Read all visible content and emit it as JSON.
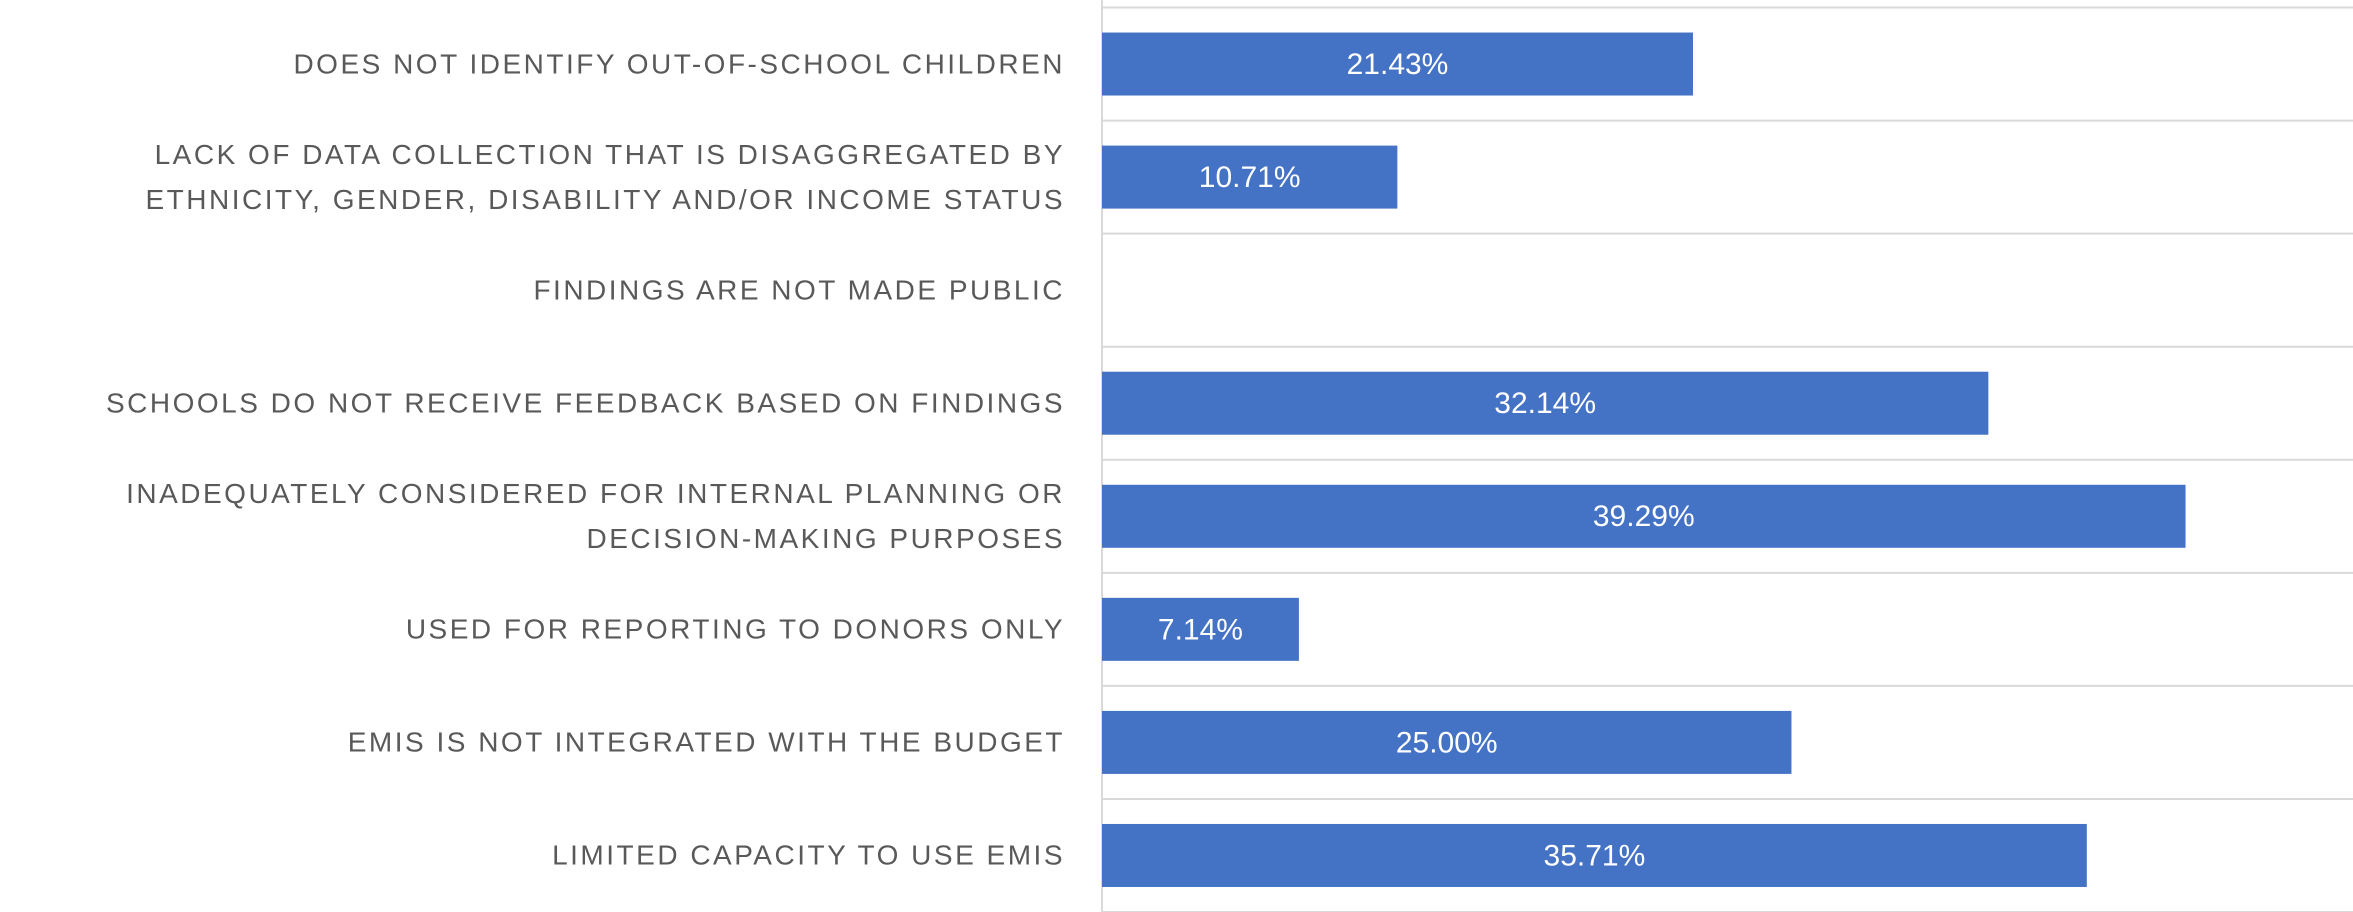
{
  "chart_data": {
    "type": "bar",
    "orientation": "horizontal",
    "categories": [
      "DOES NOT IDENTIFY OUT-OF-SCHOOL CHILDREN",
      "LACK OF DATA COLLECTION THAT IS DISAGGREGATED BY ETHNICITY, GENDER, DISABILITY AND/OR INCOME STATUS",
      "FINDINGS ARE NOT MADE PUBLIC",
      "SCHOOLS DO NOT RECEIVE FEEDBACK BASED ON FINDINGS",
      "INADEQUATELY CONSIDERED FOR INTERNAL PLANNING OR DECISION-MAKING PURPOSES",
      "USED FOR REPORTING TO DONORS ONLY",
      "EMIS IS NOT INTEGRATED WITH THE BUDGET",
      "LIMITED CAPACITY TO USE EMIS"
    ],
    "values": [
      21.43,
      10.71,
      null,
      32.14,
      39.29,
      7.14,
      25.0,
      35.71
    ],
    "value_labels": [
      "21.43%",
      "10.71%",
      null,
      "32.14%",
      "39.29%",
      "7.14%",
      "25.00%",
      "35.71%"
    ],
    "color": "#4472c4",
    "xlim": [
      0,
      45
    ]
  }
}
